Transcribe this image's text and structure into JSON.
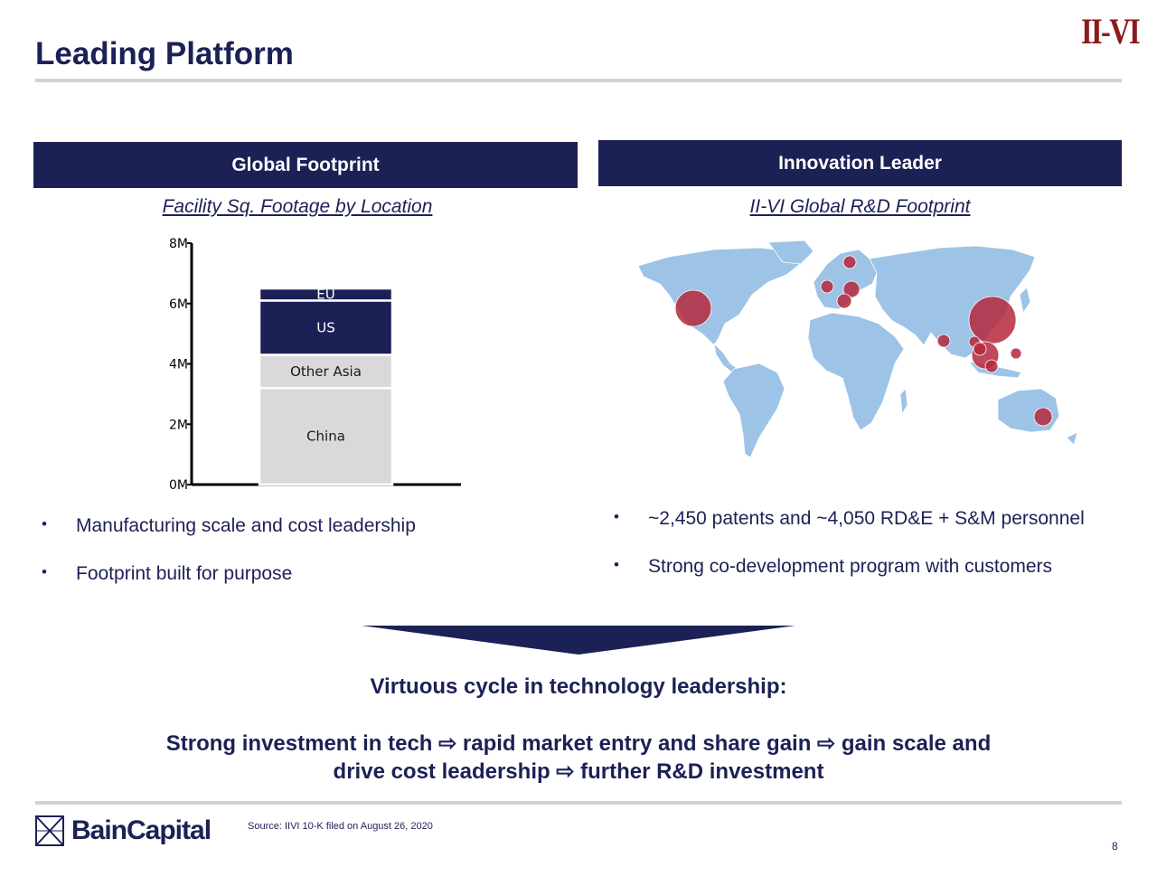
{
  "page": {
    "title": "Leading Platform",
    "logo_text": "II-VI",
    "page_number": "8",
    "source": "Source: IIVI 10-K filed on August 26, 2020",
    "footer_logo_text": "BainCapital"
  },
  "left_panel": {
    "header": "Global Footprint",
    "subtitle": "Facility Sq. Footage by Location",
    "bullets": [
      "Manufacturing scale and cost leadership",
      "Footprint built for purpose"
    ]
  },
  "right_panel": {
    "header": "Innovation Leader",
    "subtitle": "II-VI Global R&D Footprint",
    "bullets": [
      "~2,450 patents and ~4,050 RD&E + S&M personnel",
      "Strong co-development program with customers"
    ]
  },
  "cycle": {
    "heading": "Virtuous cycle in technology leadership:",
    "line1": "Strong investment in tech ⇨ rapid market entry and share gain ⇨ gain scale and",
    "line2": "drive cost leadership ⇨ further R&D investment"
  },
  "colors": {
    "navy": "#1c2155",
    "light_gray": "#d9d9d9",
    "map_land": "#9dc3e6",
    "marker": "#b5283b",
    "logo_red": "#8b1a1a"
  },
  "chart_data": {
    "type": "bar",
    "stacked": true,
    "categories": [
      ""
    ],
    "series": [
      {
        "name": "China",
        "values": [
          3.2
        ],
        "color": "#d9d9d9"
      },
      {
        "name": "Other Asia",
        "values": [
          1.1
        ],
        "color": "#d9d9d9"
      },
      {
        "name": "US",
        "values": [
          1.8
        ],
        "color": "#1c2155"
      },
      {
        "name": "EU",
        "values": [
          0.4
        ],
        "color": "#1c2155"
      }
    ],
    "yticks": [
      "0M",
      "2M",
      "4M",
      "6M",
      "8M"
    ],
    "ylim": [
      0,
      8
    ],
    "title": "",
    "xlabel": "",
    "ylabel": ""
  }
}
